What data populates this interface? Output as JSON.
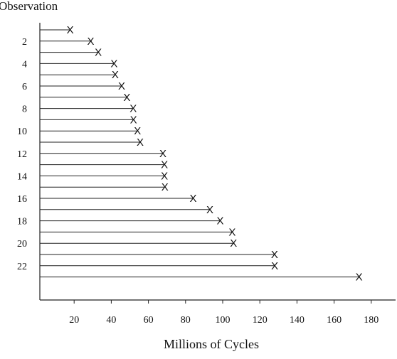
{
  "chart_data": {
    "type": "line",
    "title": "",
    "ylabel": "Observation",
    "xlabel": "Millions of Cycles",
    "xlim": [
      0,
      190
    ],
    "ylim": [
      1,
      23
    ],
    "x_ticks": [
      20,
      40,
      60,
      80,
      100,
      120,
      140,
      160,
      180
    ],
    "y_ticks": [
      2,
      4,
      6,
      8,
      10,
      12,
      14,
      16,
      18,
      20,
      22
    ],
    "marker": "X",
    "grid": false,
    "legend": "none",
    "series": [
      {
        "observations": [
          1,
          2,
          3,
          4,
          5,
          6,
          7,
          8,
          9,
          10,
          11,
          12,
          13,
          14,
          15,
          16,
          17,
          18,
          19,
          20,
          21,
          22,
          23
        ],
        "values": [
          17.88,
          28.92,
          33.0,
          41.52,
          42.12,
          45.6,
          48.4,
          51.84,
          51.96,
          54.12,
          55.56,
          67.8,
          68.64,
          68.64,
          68.88,
          84.12,
          93.12,
          98.64,
          105.12,
          105.84,
          127.92,
          128.04,
          173.4
        ]
      }
    ]
  }
}
